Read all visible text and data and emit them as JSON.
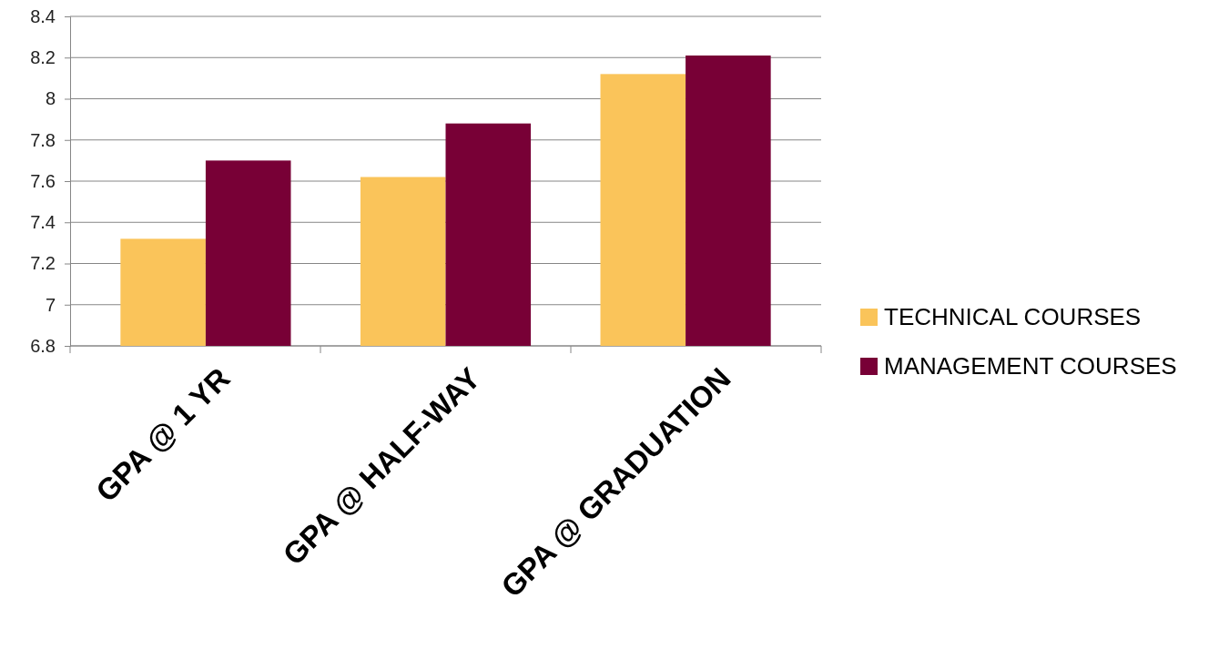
{
  "chart_data": {
    "type": "bar",
    "categories": [
      "GPA @ 1 YR",
      "GPA @ HALF-WAY",
      "GPA @ GRADUATION"
    ],
    "series": [
      {
        "name": "TECHNICAL COURSES",
        "color": "#fac45a",
        "values": [
          7.32,
          7.62,
          8.12
        ]
      },
      {
        "name": "MANAGEMENT COURSES",
        "color": "#780036",
        "values": [
          7.7,
          7.88,
          8.21
        ]
      }
    ],
    "ylim": [
      6.8,
      8.4
    ],
    "yticks": [
      6.8,
      7,
      7.2,
      7.4,
      7.6,
      7.8,
      8,
      8.2,
      8.4
    ],
    "grid": "y",
    "legend": "right"
  }
}
